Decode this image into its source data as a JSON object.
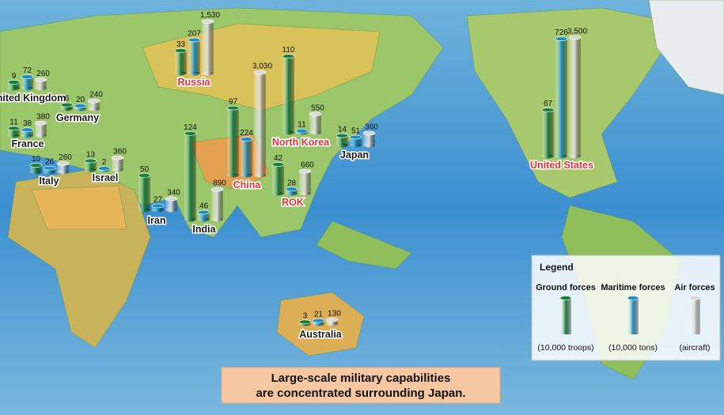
{
  "forces": [
    {
      "name": "Ground forces",
      "unit": "(10,000 troops)",
      "color": "#17803f"
    },
    {
      "name": "Maritime forces",
      "unit": "(10,000 tons)",
      "color": "#1890c4"
    },
    {
      "name": "Air forces",
      "unit": "(aircraft)",
      "color": "#d9d9d9"
    }
  ],
  "legend_title": "Legend",
  "countries": [
    {
      "name": "United Kingdom",
      "values": [
        9,
        72,
        260
      ],
      "label_color": "#1a1a1a"
    },
    {
      "name": "Germany",
      "values": [
        6,
        20,
        240
      ],
      "label_color": "#1a1a1a"
    },
    {
      "name": "France",
      "values": [
        11,
        38,
        380
      ],
      "label_color": "#1a1a1a"
    },
    {
      "name": "Italy",
      "values": [
        10,
        26,
        260
      ],
      "label_color": "#1a1a1a"
    },
    {
      "name": "Israel",
      "values": [
        13,
        2,
        360
      ],
      "label_color": "#1a1a1a"
    },
    {
      "name": "Iran",
      "values": [
        50,
        27,
        340
      ],
      "label_color": "#1a1a1a"
    },
    {
      "name": "India",
      "values": [
        124,
        46,
        890
      ],
      "label_color": "#1a1a1a"
    },
    {
      "name": "Russia",
      "values": [
        33,
        207,
        1530
      ],
      "value_labels": [
        "33",
        "207",
        "1,530"
      ],
      "label_color": "#e8333a"
    },
    {
      "name": "China",
      "values": [
        97,
        224,
        3030
      ],
      "value_labels": [
        "97",
        "224",
        "3,030"
      ],
      "label_color": "#e8333a"
    },
    {
      "name": "North Korea",
      "values": [
        110,
        11,
        550
      ],
      "label_color": "#e8333a"
    },
    {
      "name": "ROK",
      "values": [
        42,
        28,
        660
      ],
      "label_color": "#e8333a"
    },
    {
      "name": "Japan",
      "values": [
        14,
        51,
        360
      ],
      "label_color": "#1a1a1a"
    },
    {
      "name": "Australia",
      "values": [
        3,
        21,
        130
      ],
      "label_color": "#1a1a1a"
    },
    {
      "name": "United States",
      "values": [
        67,
        726,
        3500
      ],
      "value_labels": [
        "67",
        "726",
        "3,500"
      ],
      "label_color": "#e8333a"
    }
  ],
  "banner": [
    "Large-scale military capabilities",
    "are concentrated surrounding Japan."
  ]
}
